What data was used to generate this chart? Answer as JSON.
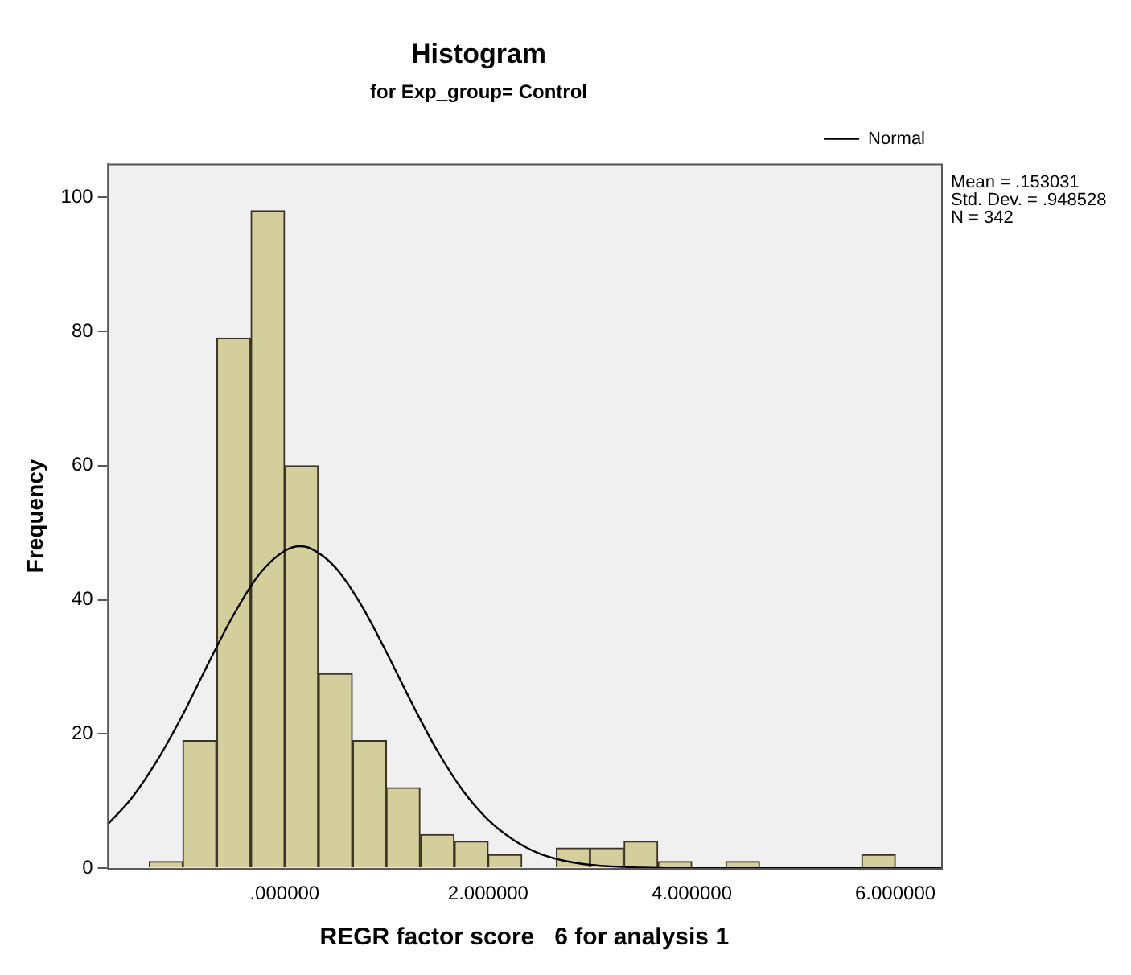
{
  "chart_data": {
    "type": "histogram",
    "title": "Histogram",
    "subtitle": "for Exp_group= Control",
    "xlabel": "REGR factor score   6 for analysis 1",
    "ylabel": "Frequency",
    "bins": [
      -1.33,
      -1,
      -0.67,
      -0.33,
      0,
      0.33,
      0.67,
      1,
      1.33,
      1.67,
      2,
      2.33,
      2.67,
      3,
      3.33,
      3.67,
      4,
      4.33,
      4.67,
      5,
      5.33,
      5.67,
      6
    ],
    "values": [
      1,
      19,
      79,
      98,
      60,
      29,
      19,
      12,
      5,
      4,
      2,
      0,
      3,
      3,
      4,
      1,
      0,
      1,
      0,
      0,
      0,
      2
    ],
    "color": "#d4cd9c",
    "series": [
      {
        "name": "Normal",
        "type": "line",
        "color": "#000000",
        "x": [
          -1.74,
          -1.5,
          -1.25,
          -1,
          -0.75,
          -0.5,
          -0.25,
          0,
          0.15,
          0.25,
          0.5,
          0.75,
          1,
          1.25,
          1.5,
          1.75,
          2,
          2.25,
          2.5,
          2.75,
          3,
          3.5,
          4,
          5,
          6.45
        ],
        "values": [
          6.5,
          10.5,
          16.1,
          22.9,
          30.5,
          37.8,
          43.8,
          47.3,
          48,
          47.7,
          44.8,
          39.3,
          32.2,
          24.6,
          17.5,
          11.6,
          7.2,
          4.2,
          2.2,
          1.1,
          0.5,
          0.1,
          0,
          0,
          0
        ]
      }
    ],
    "xlim": [
      -1.74,
      6.45
    ],
    "xticks": [
      {
        "value": 0,
        "label": ".000000"
      },
      {
        "value": 2,
        "label": "2.000000"
      },
      {
        "value": 4,
        "label": "4.000000"
      },
      {
        "value": 6,
        "label": "6.000000"
      }
    ],
    "ylim": [
      0,
      105
    ],
    "yticks": [
      0,
      20,
      40,
      60,
      80,
      100
    ],
    "grid": false,
    "legend": "top right",
    "marker": "none",
    "line_style": "solid",
    "annotations": [
      "Mean = .153031",
      "Std. Dev. = .948528",
      "N = 342"
    ]
  }
}
